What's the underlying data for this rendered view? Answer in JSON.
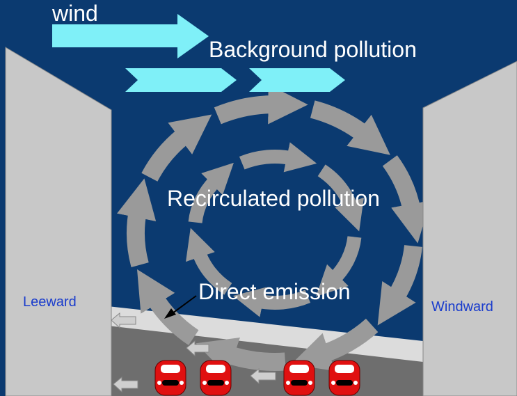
{
  "labels": {
    "wind": "wind",
    "background": "Background pollution",
    "recirculated": "Recirculated pollution",
    "direct": "Direct emission",
    "leeward": "Leeward",
    "windward": "Windward"
  }
}
